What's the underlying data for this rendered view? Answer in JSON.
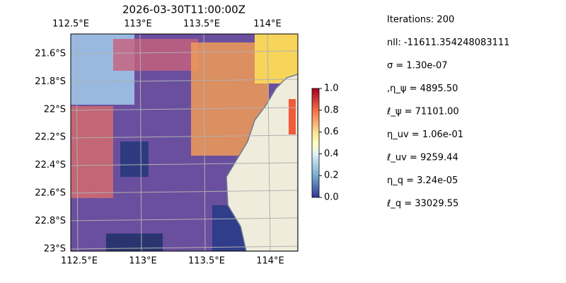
{
  "title": "2026-03-30T11:00:00Z",
  "map": {
    "top_lon_labels": [
      "112.5°E",
      "113°E",
      "113.5°E",
      "114°E"
    ],
    "bottom_lon_labels": [
      "112.5°E",
      "113°E",
      "113.5°E",
      "114°E"
    ],
    "lat_labels": [
      "21.6°S",
      "21.8°S",
      "22°S",
      "22.2°S",
      "22.4°S",
      "22.6°S",
      "22.8°S",
      "23°S"
    ]
  },
  "colorbar": {
    "range": [
      0,
      1
    ],
    "ticks": [
      {
        "value": 0,
        "label": "0.0"
      },
      {
        "value": 0.2,
        "label": "0.2"
      },
      {
        "value": 0.4,
        "label": "0.4"
      },
      {
        "value": 0.6,
        "label": "0.6"
      },
      {
        "value": 0.8,
        "label": "0.8"
      },
      {
        "value": 1,
        "label": "1.0"
      }
    ]
  },
  "stats": [
    "Iterations: 200",
    "nll: -11611.354248083111",
    "σ = 1.30e-07",
    ",η_ψ = 4895.50",
    "ℓ_ψ = 71101.00",
    "η_uv = 1.06e-01",
    "ℓ_uv = 9259.44",
    "η_q = 3.24e-05",
    "ℓ_q = 33029.55"
  ]
}
